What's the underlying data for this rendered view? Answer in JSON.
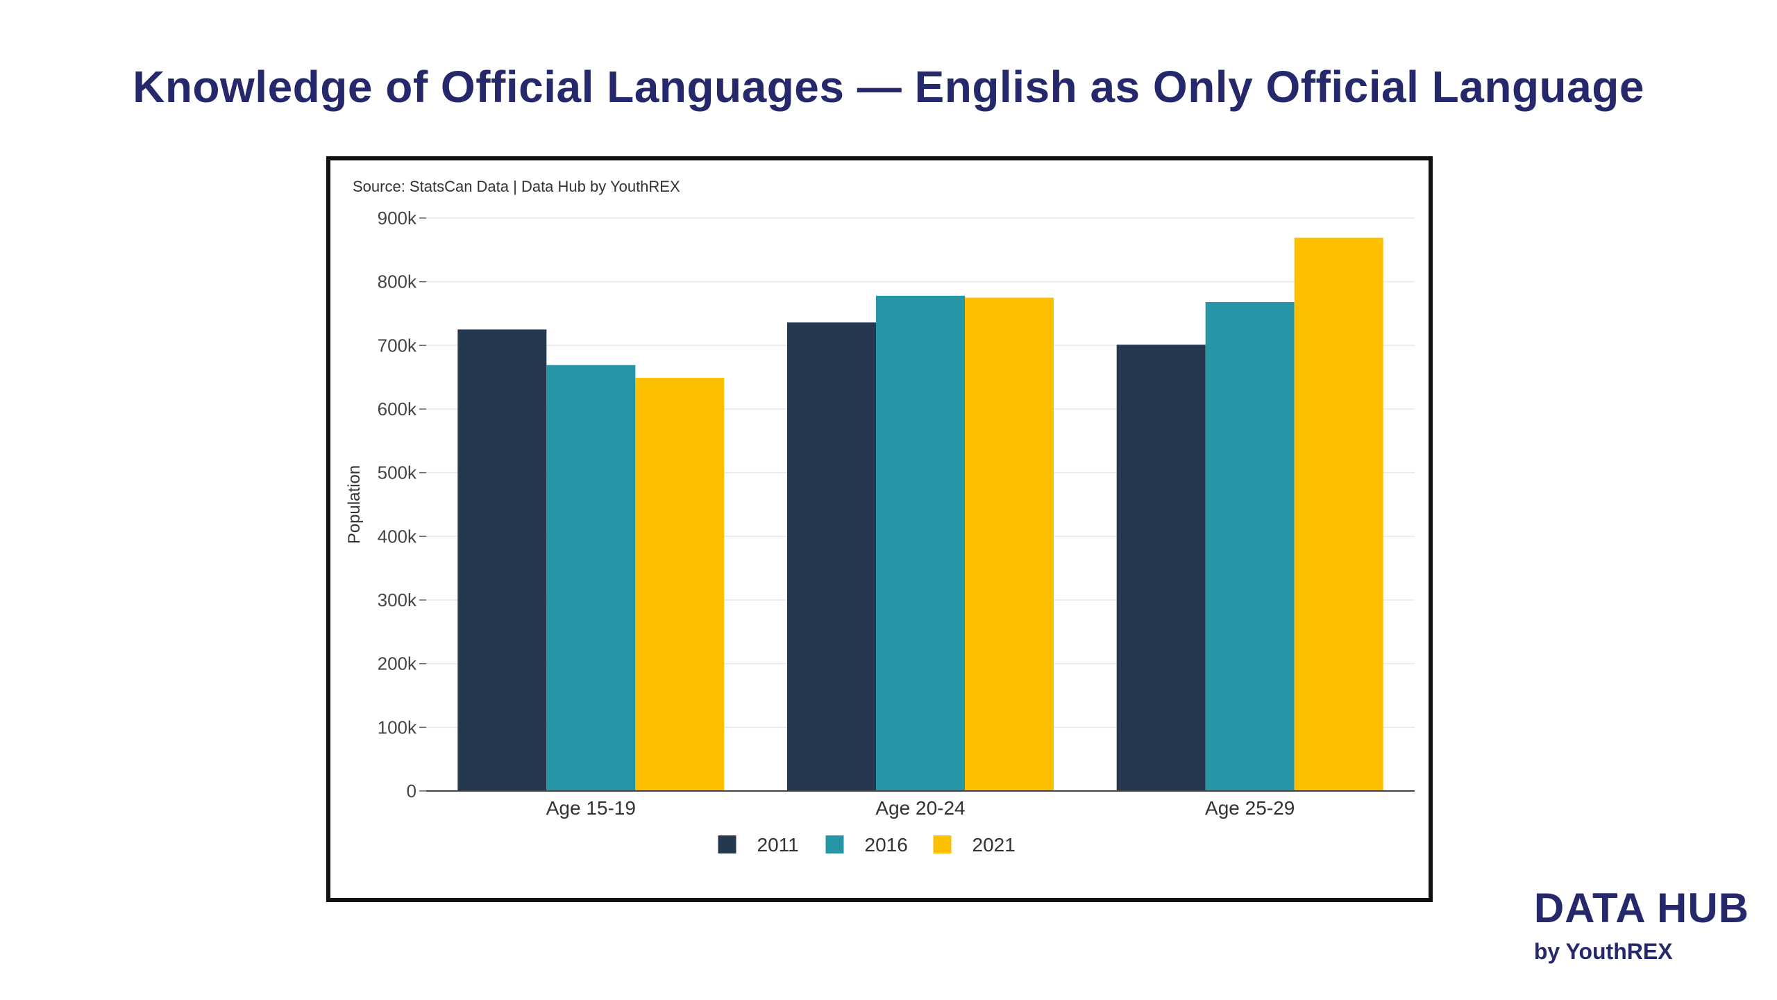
{
  "title": "Knowledge of Official Languages — English as Only Official Language",
  "brand": {
    "main": "DATA HUB",
    "sub": "by YouthREX"
  },
  "colors": {
    "title": "#25296b",
    "series_2011": "#263750",
    "series_2016": "#2695a6",
    "series_2021": "#fdc000"
  },
  "chart_data": {
    "type": "bar",
    "source_note": "Source: StatsCan Data | Data Hub by YouthREX",
    "ylabel": "Population",
    "xlabel": "",
    "categories": [
      "Age 15-19",
      "Age 20-24",
      "Age 25-29"
    ],
    "series": [
      {
        "name": "2011",
        "color": "#263750",
        "values": [
          725000,
          736000,
          701000
        ]
      },
      {
        "name": "2016",
        "color": "#2695a6",
        "values": [
          669000,
          778000,
          768000
        ]
      },
      {
        "name": "2021",
        "color": "#fdc000",
        "values": [
          649000,
          775000,
          869000
        ]
      }
    ],
    "ylim": [
      0,
      900000
    ],
    "yticks": [
      0,
      100000,
      200000,
      300000,
      400000,
      500000,
      600000,
      700000,
      800000,
      900000
    ],
    "ytick_labels": [
      "0",
      "100k",
      "200k",
      "300k",
      "400k",
      "500k",
      "600k",
      "700k",
      "800k",
      "900k"
    ],
    "grid": true,
    "legend_position": "bottom-center"
  }
}
